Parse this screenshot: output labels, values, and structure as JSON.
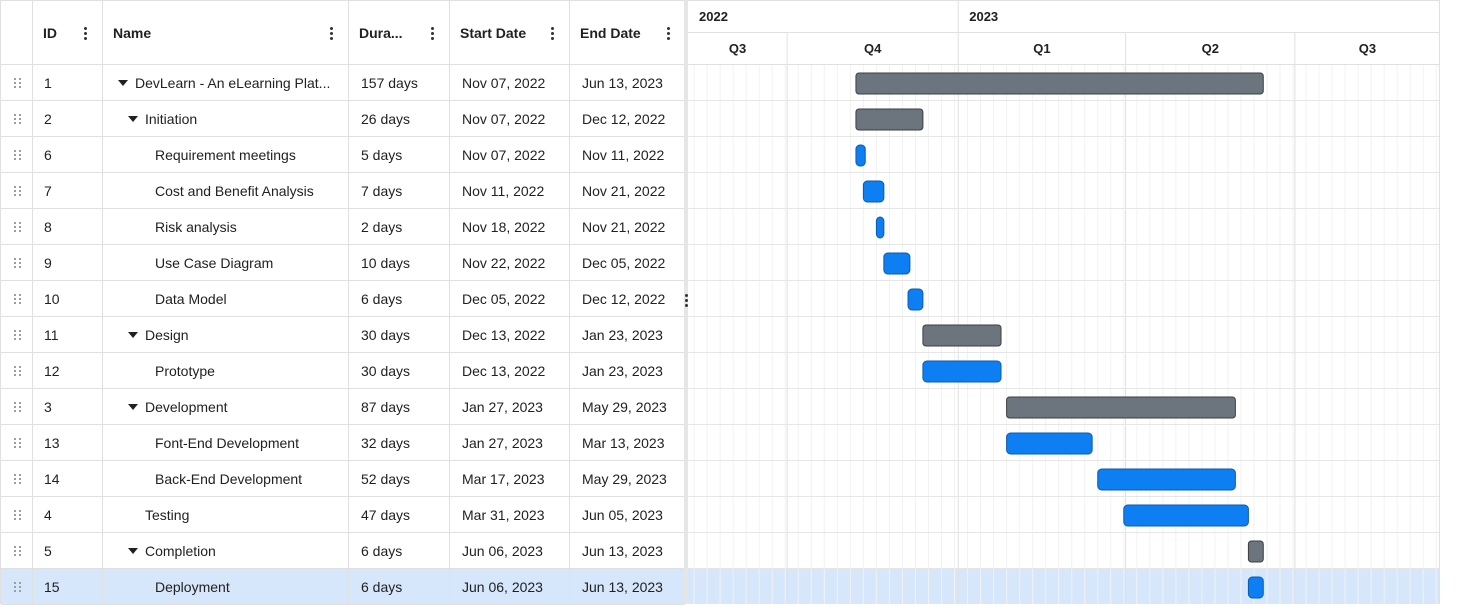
{
  "columns": [
    {
      "key": "id",
      "label": "ID"
    },
    {
      "key": "name",
      "label": "Name"
    },
    {
      "key": "duration",
      "label": "Dura..."
    },
    {
      "key": "start",
      "label": "Start Date"
    },
    {
      "key": "end",
      "label": "End Date"
    }
  ],
  "timeline": {
    "years": [
      "2022",
      "2023"
    ],
    "quarters": [
      "Q3",
      "Q4",
      "Q1",
      "Q2",
      "Q3"
    ]
  },
  "colors": {
    "parent_bar": "#6c757d",
    "task_bar": "#0d7ff2",
    "selected_row": "#d6e7fb",
    "grid_line": "#e0e0e0"
  },
  "tasks": [
    {
      "id": "1",
      "name": "DevLearn - An eLearning Platform",
      "name_shown": "DevLearn - An eLearning Plat...",
      "duration": "157 days",
      "start": "Nov 07, 2022",
      "end": "Jun 13, 2023",
      "level": 0,
      "expandable": true,
      "type": "parent"
    },
    {
      "id": "2",
      "name": "Initiation",
      "duration": "26 days",
      "start": "Nov 07, 2022",
      "end": "Dec 12, 2022",
      "level": 1,
      "expandable": true,
      "type": "parent"
    },
    {
      "id": "6",
      "name": "Requirement meetings",
      "duration": "5 days",
      "start": "Nov 07, 2022",
      "end": "Nov 11, 2022",
      "level": 2,
      "expandable": false,
      "type": "task"
    },
    {
      "id": "7",
      "name": "Cost and Benefit Analysis",
      "duration": "7 days",
      "start": "Nov 11, 2022",
      "end": "Nov 21, 2022",
      "level": 2,
      "expandable": false,
      "type": "task"
    },
    {
      "id": "8",
      "name": "Risk analysis",
      "duration": "2 days",
      "start": "Nov 18, 2022",
      "end": "Nov 21, 2022",
      "level": 2,
      "expandable": false,
      "type": "task"
    },
    {
      "id": "9",
      "name": "Use Case Diagram",
      "duration": "10 days",
      "start": "Nov 22, 2022",
      "end": "Dec 05, 2022",
      "level": 2,
      "expandable": false,
      "type": "task"
    },
    {
      "id": "10",
      "name": "Data Model",
      "duration": "6 days",
      "start": "Dec 05, 2022",
      "end": "Dec 12, 2022",
      "level": 2,
      "expandable": false,
      "type": "task"
    },
    {
      "id": "11",
      "name": "Design",
      "duration": "30 days",
      "start": "Dec 13, 2022",
      "end": "Jan 23, 2023",
      "level": 1,
      "expandable": true,
      "type": "parent"
    },
    {
      "id": "12",
      "name": "Prototype",
      "duration": "30 days",
      "start": "Dec 13, 2022",
      "end": "Jan 23, 2023",
      "level": 2,
      "expandable": false,
      "type": "task"
    },
    {
      "id": "3",
      "name": "Development",
      "duration": "87 days",
      "start": "Jan 27, 2023",
      "end": "May 29, 2023",
      "level": 1,
      "expandable": true,
      "type": "parent"
    },
    {
      "id": "13",
      "name": "Font-End Development",
      "duration": "32 days",
      "start": "Jan 27, 2023",
      "end": "Mar 13, 2023",
      "level": 2,
      "expandable": false,
      "type": "task"
    },
    {
      "id": "14",
      "name": "Back-End Development",
      "duration": "52 days",
      "start": "Mar 17, 2023",
      "end": "May 29, 2023",
      "level": 2,
      "expandable": false,
      "type": "task"
    },
    {
      "id": "4",
      "name": "Testing",
      "duration": "47 days",
      "start": "Mar 31, 2023",
      "end": "Jun 05, 2023",
      "level": 1,
      "expandable": false,
      "type": "task"
    },
    {
      "id": "5",
      "name": "Completion",
      "duration": "6 days",
      "start": "Jun 06, 2023",
      "end": "Jun 13, 2023",
      "level": 1,
      "expandable": true,
      "type": "parent"
    },
    {
      "id": "15",
      "name": "Deployment",
      "duration": "6 days",
      "start": "Jun 06, 2023",
      "end": "Jun 13, 2023",
      "level": 2,
      "expandable": false,
      "type": "task",
      "selected": true
    }
  ]
}
